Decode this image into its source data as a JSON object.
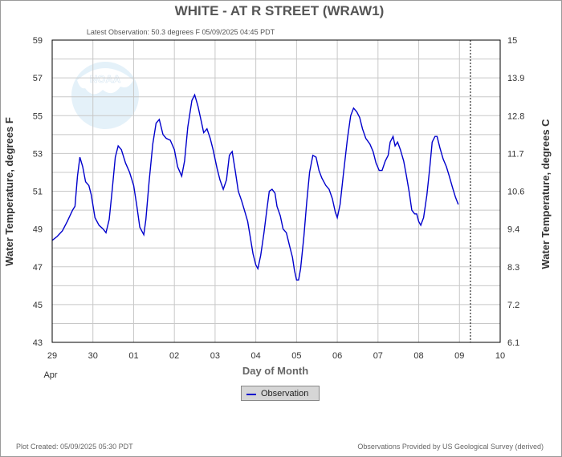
{
  "title": "WHITE - AT R STREET  (WRAW1)",
  "subtitle": "Latest Observation: 50.3 degrees F  05/09/2025 04:45 PDT",
  "footer_left": "Plot Created: 05/09/2025 05:30 PDT",
  "footer_right": "Observations Provided by US Geological Survey (derived)",
  "logo_text": "NOAA",
  "legend": {
    "label": "Observation"
  },
  "colors": {
    "series": "#0000cc",
    "grid": "#c8c8c8",
    "axis": "#000000",
    "logo": "#cfe6f5"
  },
  "chart_data": {
    "type": "line",
    "title": "WHITE - AT R STREET  (WRAW1)",
    "xlabel": "Day of Month",
    "x_month_label": "Apr",
    "ylabel_left": "Water Temperature, degrees F",
    "ylabel_right": "Water Temperature, degrees C",
    "xlim": [
      0,
      11
    ],
    "ylim": [
      43,
      59
    ],
    "x_ticks": [
      "29",
      "30",
      "01",
      "02",
      "03",
      "04",
      "05",
      "06",
      "07",
      "08",
      "09",
      "10"
    ],
    "y_ticks_left": [
      "43",
      "45",
      "47",
      "49",
      "51",
      "53",
      "55",
      "57",
      "59"
    ],
    "y_ticks_right": [
      "6.1",
      "7.2",
      "8.3",
      "9.4",
      "10.6",
      "11.7",
      "12.8",
      "13.9",
      "15"
    ],
    "grid": true,
    "latest_observation_x": 10.27,
    "series": [
      {
        "name": "Observation",
        "points": [
          [
            0.0,
            48.4
          ],
          [
            0.12,
            48.6
          ],
          [
            0.25,
            48.9
          ],
          [
            0.37,
            49.4
          ],
          [
            0.5,
            50.0
          ],
          [
            0.56,
            50.2
          ],
          [
            0.62,
            51.8
          ],
          [
            0.68,
            52.8
          ],
          [
            0.75,
            52.3
          ],
          [
            0.82,
            51.5
          ],
          [
            0.9,
            51.3
          ],
          [
            0.96,
            50.8
          ],
          [
            1.05,
            49.6
          ],
          [
            1.15,
            49.2
          ],
          [
            1.25,
            49.0
          ],
          [
            1.32,
            48.8
          ],
          [
            1.4,
            49.5
          ],
          [
            1.47,
            51.0
          ],
          [
            1.55,
            52.8
          ],
          [
            1.62,
            53.4
          ],
          [
            1.7,
            53.2
          ],
          [
            1.8,
            52.5
          ],
          [
            1.9,
            52.0
          ],
          [
            2.0,
            51.3
          ],
          [
            2.08,
            50.2
          ],
          [
            2.15,
            49.1
          ],
          [
            2.25,
            48.7
          ],
          [
            2.3,
            49.5
          ],
          [
            2.38,
            51.5
          ],
          [
            2.47,
            53.5
          ],
          [
            2.55,
            54.6
          ],
          [
            2.63,
            54.8
          ],
          [
            2.72,
            54.0
          ],
          [
            2.8,
            53.8
          ],
          [
            2.9,
            53.7
          ],
          [
            3.0,
            53.2
          ],
          [
            3.08,
            52.3
          ],
          [
            3.18,
            51.8
          ],
          [
            3.25,
            52.6
          ],
          [
            3.33,
            54.4
          ],
          [
            3.43,
            55.8
          ],
          [
            3.5,
            56.1
          ],
          [
            3.58,
            55.5
          ],
          [
            3.67,
            54.6
          ],
          [
            3.72,
            54.1
          ],
          [
            3.8,
            54.3
          ],
          [
            3.88,
            53.8
          ],
          [
            3.95,
            53.2
          ],
          [
            4.05,
            52.2
          ],
          [
            4.12,
            51.6
          ],
          [
            4.2,
            51.1
          ],
          [
            4.28,
            51.6
          ],
          [
            4.35,
            52.9
          ],
          [
            4.42,
            53.1
          ],
          [
            4.5,
            52.0
          ],
          [
            4.57,
            51.0
          ],
          [
            4.65,
            50.5
          ],
          [
            4.72,
            50.0
          ],
          [
            4.8,
            49.4
          ],
          [
            4.87,
            48.5
          ],
          [
            4.93,
            47.7
          ],
          [
            5.0,
            47.1
          ],
          [
            5.05,
            46.9
          ],
          [
            5.12,
            47.6
          ],
          [
            5.2,
            48.8
          ],
          [
            5.27,
            50.0
          ],
          [
            5.33,
            51.0
          ],
          [
            5.4,
            51.1
          ],
          [
            5.47,
            50.9
          ],
          [
            5.52,
            50.2
          ],
          [
            5.6,
            49.7
          ],
          [
            5.67,
            49.0
          ],
          [
            5.75,
            48.8
          ],
          [
            5.83,
            48.1
          ],
          [
            5.9,
            47.5
          ],
          [
            5.95,
            46.8
          ],
          [
            6.0,
            46.3
          ],
          [
            6.05,
            46.3
          ],
          [
            6.1,
            46.9
          ],
          [
            6.18,
            48.6
          ],
          [
            6.25,
            50.4
          ],
          [
            6.32,
            52.0
          ],
          [
            6.4,
            52.9
          ],
          [
            6.48,
            52.8
          ],
          [
            6.55,
            52.1
          ],
          [
            6.62,
            51.7
          ],
          [
            6.72,
            51.3
          ],
          [
            6.8,
            51.1
          ],
          [
            6.88,
            50.6
          ],
          [
            6.95,
            49.9
          ],
          [
            7.0,
            49.6
          ],
          [
            7.07,
            50.3
          ],
          [
            7.15,
            51.9
          ],
          [
            7.25,
            53.8
          ],
          [
            7.33,
            55.0
          ],
          [
            7.4,
            55.4
          ],
          [
            7.48,
            55.2
          ],
          [
            7.55,
            54.9
          ],
          [
            7.62,
            54.3
          ],
          [
            7.7,
            53.8
          ],
          [
            7.8,
            53.5
          ],
          [
            7.88,
            53.1
          ],
          [
            7.95,
            52.5
          ],
          [
            8.03,
            52.1
          ],
          [
            8.1,
            52.1
          ],
          [
            8.18,
            52.6
          ],
          [
            8.25,
            52.9
          ],
          [
            8.3,
            53.6
          ],
          [
            8.37,
            53.9
          ],
          [
            8.42,
            53.4
          ],
          [
            8.48,
            53.6
          ],
          [
            8.55,
            53.2
          ],
          [
            8.63,
            52.6
          ],
          [
            8.7,
            51.8
          ],
          [
            8.77,
            50.9
          ],
          [
            8.83,
            50.0
          ],
          [
            8.9,
            49.8
          ],
          [
            8.95,
            49.8
          ],
          [
            9.0,
            49.4
          ],
          [
            9.05,
            49.2
          ],
          [
            9.12,
            49.6
          ],
          [
            9.2,
            50.8
          ],
          [
            9.27,
            52.2
          ],
          [
            9.33,
            53.6
          ],
          [
            9.4,
            53.9
          ],
          [
            9.45,
            53.9
          ],
          [
            9.52,
            53.3
          ],
          [
            9.6,
            52.7
          ],
          [
            9.68,
            52.3
          ],
          [
            9.75,
            51.8
          ],
          [
            9.83,
            51.2
          ],
          [
            9.9,
            50.7
          ],
          [
            9.97,
            50.3
          ]
        ]
      }
    ]
  }
}
